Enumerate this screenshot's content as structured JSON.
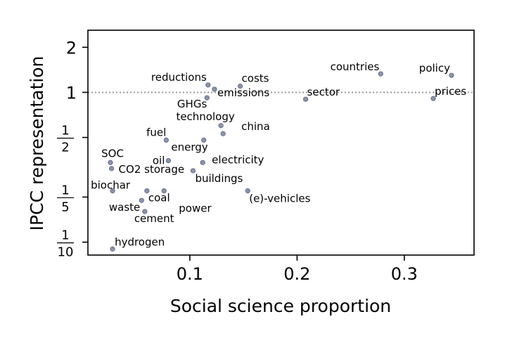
{
  "chart_data": {
    "type": "scatter",
    "xlabel": "Social science proportion",
    "ylabel": "IPCC representation",
    "xlim": [
      0.005,
      0.365
    ],
    "ylim": [
      0.082,
      2.6
    ],
    "yscale": "log",
    "x_ticks": [
      {
        "value": 0.1,
        "label": "0.1"
      },
      {
        "value": 0.2,
        "label": "0.2"
      },
      {
        "value": 0.3,
        "label": "0.3"
      }
    ],
    "y_ticks": [
      {
        "value": 2,
        "label": "2"
      },
      {
        "value": 1,
        "label": "1"
      },
      {
        "value": 0.5,
        "num": "1",
        "den": "2"
      },
      {
        "value": 0.2,
        "num": "1",
        "den": "5"
      },
      {
        "value": 0.1,
        "num": "1",
        "den": "10"
      }
    ],
    "reference_line": {
      "y": 1,
      "style": "dotted"
    },
    "marker_color": "#8a93ad",
    "marker_edge": "#5d6680",
    "points": [
      {
        "label": "countries",
        "x": 0.278,
        "y": 1.33,
        "anchor": "end",
        "dx": -2,
        "dy": -5
      },
      {
        "label": "policy",
        "x": 0.344,
        "y": 1.3,
        "anchor": "end",
        "dx": -2,
        "dy": -5
      },
      {
        "label": "reductions",
        "x": 0.117,
        "y": 1.12,
        "anchor": "end",
        "dx": -2,
        "dy": -6
      },
      {
        "label": "costs",
        "x": 0.147,
        "y": 1.1,
        "anchor": "start",
        "dx": 2,
        "dy": -6
      },
      {
        "label": "emissions",
        "x": 0.123,
        "y": 1.05,
        "anchor": "start",
        "dx": 4,
        "dy": 10
      },
      {
        "label": "GHGs",
        "x": 0.116,
        "y": 0.92,
        "anchor": "end",
        "dx": 0,
        "dy": 14
      },
      {
        "label": "sector",
        "x": 0.208,
        "y": 0.9,
        "anchor": "start",
        "dx": 2,
        "dy": -5
      },
      {
        "label": "prices",
        "x": 0.327,
        "y": 0.91,
        "anchor": "start",
        "dx": 2,
        "dy": -5
      },
      {
        "label": "technology",
        "x": 0.129,
        "y": 0.6,
        "anchor": "middle",
        "dx": -22,
        "dy": -8
      },
      {
        "label": "china",
        "x": 0.131,
        "y": 0.53,
        "anchor": "start",
        "dx": 26,
        "dy": -5
      },
      {
        "label": "fuel",
        "x": 0.078,
        "y": 0.48,
        "anchor": "end",
        "dx": 0,
        "dy": -6
      },
      {
        "label": "energy",
        "x": 0.113,
        "y": 0.48,
        "anchor": "end",
        "dx": 6,
        "dy": 15
      },
      {
        "label": "oil",
        "x": 0.08,
        "y": 0.35,
        "anchor": "end",
        "dx": -5,
        "dy": 5
      },
      {
        "label": "electricity",
        "x": 0.112,
        "y": 0.34,
        "anchor": "start",
        "dx": 13,
        "dy": 1
      },
      {
        "label": "SOC",
        "x": 0.026,
        "y": 0.34,
        "anchor": "middle",
        "dx": 3,
        "dy": -8
      },
      {
        "label": "CO2 storage",
        "x": 0.027,
        "y": 0.31,
        "anchor": "start",
        "dx": 10,
        "dy": 6
      },
      {
        "label": "buildings",
        "x": 0.103,
        "y": 0.3,
        "anchor": "start",
        "dx": 3,
        "dy": 16
      },
      {
        "label": "(e)-vehicles",
        "x": 0.154,
        "y": 0.22,
        "anchor": "start",
        "dx": 2,
        "dy": 16
      },
      {
        "label": "biochar",
        "x": 0.028,
        "y": 0.22,
        "anchor": "middle",
        "dx": -3,
        "dy": -3
      },
      {
        "label": "coal",
        "x": 0.06,
        "y": 0.22,
        "anchor": "start",
        "dx": 2,
        "dy": 15
      },
      {
        "label": "waste",
        "x": 0.055,
        "y": 0.19,
        "anchor": "end",
        "dx": -2,
        "dy": 15
      },
      {
        "label": "power",
        "x": 0.076,
        "y": 0.22,
        "anchor": "start",
        "dx": 21,
        "dy": 30
      },
      {
        "label": "cement",
        "x": 0.058,
        "y": 0.16,
        "anchor": "start",
        "dx": -15,
        "dy": 15
      },
      {
        "label": "hydrogen",
        "x": 0.028,
        "y": 0.09,
        "anchor": "start",
        "dx": 3,
        "dy": -5
      }
    ]
  }
}
